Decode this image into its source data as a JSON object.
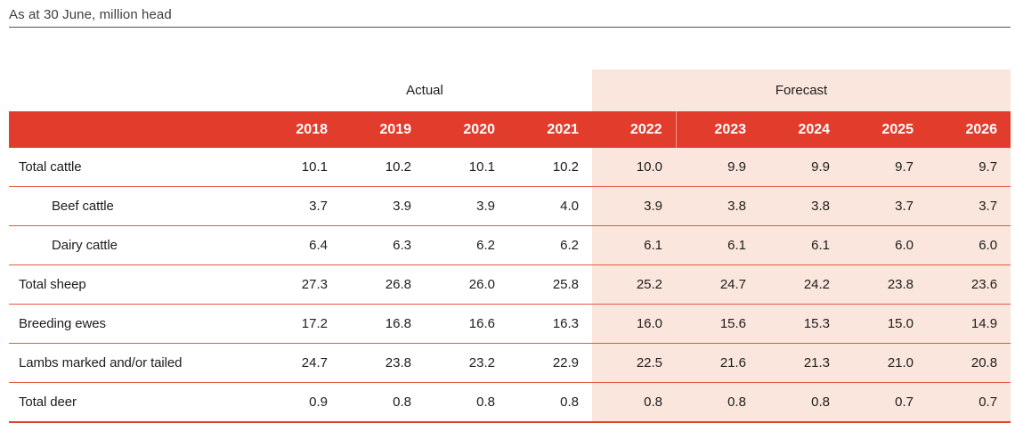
{
  "title": "As at 30 June, million head",
  "colors": {
    "header_red": "#e23d2c",
    "forecast_pink": "#fae6dd",
    "row_rule_red": "#e25a42",
    "bottom_rule_red": "#dd4430",
    "title_rule_gray": "#55554e"
  },
  "table": {
    "group_headers": {
      "actual": "Actual",
      "forecast": "Forecast"
    },
    "years": {
      "actual": [
        "2018",
        "2019",
        "2020",
        "2021"
      ],
      "forecast": [
        "2022",
        "2023",
        "2024",
        "2025",
        "2026"
      ]
    },
    "rows": [
      {
        "label": "Total cattle",
        "indent": false,
        "actual": [
          "10.1",
          "10.2",
          "10.1",
          "10.2"
        ],
        "forecast": [
          "10.0",
          "9.9",
          "9.9",
          "9.7",
          "9.7"
        ]
      },
      {
        "label": "Beef cattle",
        "indent": true,
        "actual": [
          "3.7",
          "3.9",
          "3.9",
          "4.0"
        ],
        "forecast": [
          "3.9",
          "3.8",
          "3.8",
          "3.7",
          "3.7"
        ]
      },
      {
        "label": "Dairy cattle",
        "indent": true,
        "actual": [
          "6.4",
          "6.3",
          "6.2",
          "6.2"
        ],
        "forecast": [
          "6.1",
          "6.1",
          "6.1",
          "6.0",
          "6.0"
        ]
      },
      {
        "label": "Total sheep",
        "indent": false,
        "actual": [
          "27.3",
          "26.8",
          "26.0",
          "25.8"
        ],
        "forecast": [
          "25.2",
          "24.7",
          "24.2",
          "23.8",
          "23.6"
        ]
      },
      {
        "label": "Breeding ewes",
        "indent": false,
        "actual": [
          "17.2",
          "16.8",
          "16.6",
          "16.3"
        ],
        "forecast": [
          "16.0",
          "15.6",
          "15.3",
          "15.0",
          "14.9"
        ]
      },
      {
        "label": "Lambs marked and/or tailed",
        "indent": false,
        "actual": [
          "24.7",
          "23.8",
          "23.2",
          "22.9"
        ],
        "forecast": [
          "22.5",
          "21.6",
          "21.3",
          "21.0",
          "20.8"
        ]
      },
      {
        "label": "Total deer",
        "indent": false,
        "actual": [
          "0.9",
          "0.8",
          "0.8",
          "0.8"
        ],
        "forecast": [
          "0.8",
          "0.8",
          "0.8",
          "0.7",
          "0.7"
        ]
      }
    ]
  },
  "chart_data": {
    "type": "table",
    "title": "As at 30 June, million head",
    "column_groups": [
      "Actual",
      "Forecast"
    ],
    "columns": [
      "2018",
      "2019",
      "2020",
      "2021",
      "2022",
      "2023",
      "2024",
      "2025",
      "2026"
    ],
    "series": [
      {
        "name": "Total cattle",
        "values": [
          10.1,
          10.2,
          10.1,
          10.2,
          10.0,
          9.9,
          9.9,
          9.7,
          9.7
        ]
      },
      {
        "name": "Beef cattle",
        "values": [
          3.7,
          3.9,
          3.9,
          4.0,
          3.9,
          3.8,
          3.8,
          3.7,
          3.7
        ]
      },
      {
        "name": "Dairy cattle",
        "values": [
          6.4,
          6.3,
          6.2,
          6.2,
          6.1,
          6.1,
          6.1,
          6.0,
          6.0
        ]
      },
      {
        "name": "Total sheep",
        "values": [
          27.3,
          26.8,
          26.0,
          25.8,
          25.2,
          24.7,
          24.2,
          23.8,
          23.6
        ]
      },
      {
        "name": "Breeding ewes",
        "values": [
          17.2,
          16.8,
          16.6,
          16.3,
          16.0,
          15.6,
          15.3,
          15.0,
          14.9
        ]
      },
      {
        "name": "Lambs marked and/or tailed",
        "values": [
          24.7,
          23.8,
          23.2,
          22.9,
          22.5,
          21.6,
          21.3,
          21.0,
          20.8
        ]
      },
      {
        "name": "Total deer",
        "values": [
          0.9,
          0.8,
          0.8,
          0.8,
          0.8,
          0.8,
          0.8,
          0.7,
          0.7
        ]
      }
    ]
  }
}
